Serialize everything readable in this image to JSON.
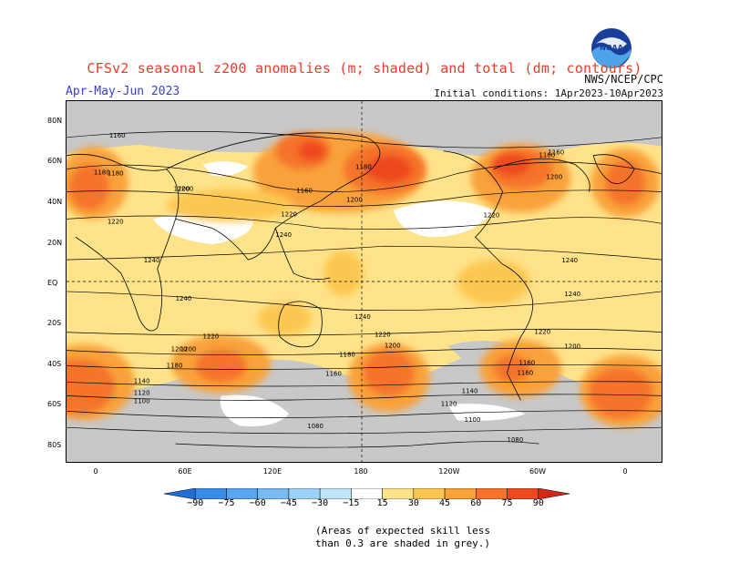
{
  "header": {
    "title": "CFSv2 seasonal z200 anomalies (m; shaded) and total (dm; contours)",
    "season": "Apr-May-Jun 2023",
    "agency": "NWS/NCEP/CPC",
    "initial_conditions": "Initial conditions: 1Apr2023-10Apr2023",
    "logo_text": "NOAA"
  },
  "map": {
    "lat_labels": [
      "80N",
      "60N",
      "40N",
      "20N",
      "EQ",
      "20S",
      "40S",
      "60S",
      "80S"
    ],
    "lon_labels": [
      "0",
      "60E",
      "120E",
      "180",
      "120W",
      "60W",
      "0"
    ],
    "contour_labels": [
      "1160",
      "1180",
      "1200",
      "1160",
      "1200",
      "1180",
      "1200",
      "1160",
      "1160",
      "1180",
      "1200",
      "1220",
      "1220",
      "1220",
      "1240",
      "1240",
      "1240",
      "1240",
      "1240",
      "1240",
      "1220",
      "1200",
      "1180",
      "1220",
      "1200",
      "1160",
      "1140",
      "1120",
      "1100",
      "1220",
      "1200",
      "1180",
      "1160",
      "1140",
      "1120",
      "1100",
      "1080",
      "1200",
      "1160",
      "1080"
    ],
    "colors": {
      "grey": "#c8c8c8",
      "land_outline": "#000000",
      "zero_band": "#ffffff"
    }
  },
  "colorbar": {
    "labels": [
      "−90",
      "−75",
      "−60",
      "−45",
      "−30",
      "−15",
      "15",
      "30",
      "45",
      "60",
      "75",
      "90"
    ],
    "colors": [
      "#1f6fd6",
      "#3a8be8",
      "#5aa5f0",
      "#79bcf4",
      "#9ad3f7",
      "#bfe6fa",
      "#ffffff",
      "#ffe38a",
      "#fcc751",
      "#f9a23a",
      "#f5732a",
      "#ee4a1e",
      "#d8251a"
    ]
  },
  "footnote": {
    "line1": "(Areas of expected skill less",
    "line2": "than 0.3 are shaded in grey.)"
  }
}
